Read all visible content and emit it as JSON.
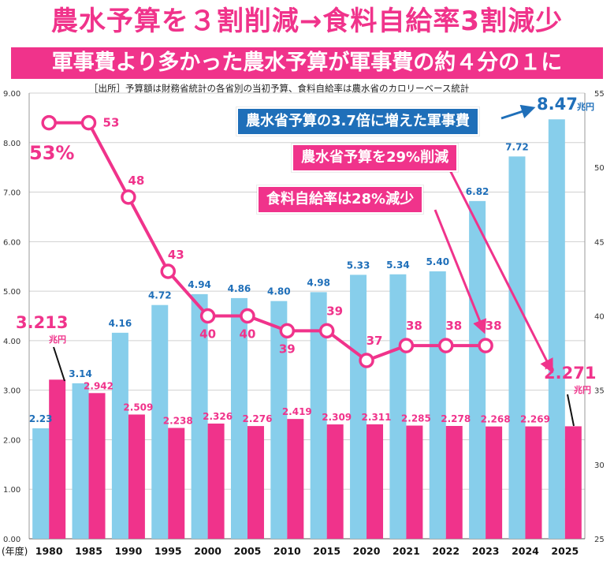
{
  "title": "農水予算を３割削減→食料自給率3割減少",
  "banner": "軍事費より多かった農水予算が軍事費の約４分の１に",
  "source": "［出所］予算額は財務省統計の各省別の当初予算、食料自給率は農水省のカロリーベース統計",
  "callouts": {
    "military": "農水省予算の3.7倍に増えた軍事費",
    "agri": "農水省予算を29%削減",
    "food": "食料自給率は28%減少"
  },
  "labels": {
    "agri_1980_value": "3.213",
    "agri_2025_value": "2.271",
    "military_2025_value": "8.47",
    "unit": "兆円",
    "food_1980_value": "53%",
    "x_unit": "(年度)"
  },
  "colors": {
    "military": "#87ceeb",
    "agri": "#f0338b",
    "food": "#f0338b",
    "military_text": "#1f6fb9",
    "grid": "#d0d0d0"
  },
  "chart_data": {
    "type": "bar",
    "categories": [
      "1980",
      "1985",
      "1990",
      "1995",
      "2000",
      "2005",
      "2010",
      "2015",
      "2020",
      "2021",
      "2022",
      "2023",
      "2024",
      "2025"
    ],
    "series": [
      {
        "values": [
          2.23,
          3.14,
          4.16,
          4.72,
          4.94,
          4.86,
          4.8,
          4.98,
          5.33,
          5.34,
          5.4,
          6.82,
          7.72,
          8.47
        ],
        "labels": [
          "2.23",
          "3.14",
          "4.16",
          "4.72",
          "4.94",
          "4.86",
          "4.80",
          "4.98",
          "5.33",
          "5.34",
          "5.40",
          "6.82",
          "7.72",
          "8.47"
        ]
      },
      {
        "values": [
          3.213,
          2.942,
          2.509,
          2.238,
          2.326,
          2.276,
          2.419,
          2.309,
          2.311,
          2.285,
          2.278,
          2.268,
          2.269,
          2.271
        ],
        "labels": [
          "3.213",
          "2.942",
          "2.509",
          "2.238",
          "2.326",
          "2.276",
          "2.419",
          "2.309",
          "2.311",
          "2.285",
          "2.278",
          "2.268",
          "2.269",
          "2.271"
        ]
      }
    ],
    "line": {
      "type": "line",
      "categories": [
        "1980",
        "1985",
        "1990",
        "1995",
        "2000",
        "2005",
        "2010",
        "2015",
        "2020",
        "2021",
        "2022",
        "2023"
      ],
      "values": [
        53,
        53,
        48,
        43,
        40,
        40,
        39,
        39,
        37,
        38,
        38,
        38
      ],
      "labels": [
        "53",
        "53",
        "48",
        "43",
        "40",
        "40",
        "39",
        "39",
        "37",
        "38",
        "38",
        "38"
      ]
    },
    "ylim": [
      0,
      9
    ],
    "yticks": [
      "0.00",
      "1.00",
      "2.00",
      "3.00",
      "4.00",
      "5.00",
      "6.00",
      "7.00",
      "8.00",
      "9.00"
    ],
    "y2lim": [
      25,
      55
    ],
    "y2ticks": [
      "25",
      "30",
      "35",
      "40",
      "45",
      "50",
      "55"
    ],
    "grid": true
  }
}
